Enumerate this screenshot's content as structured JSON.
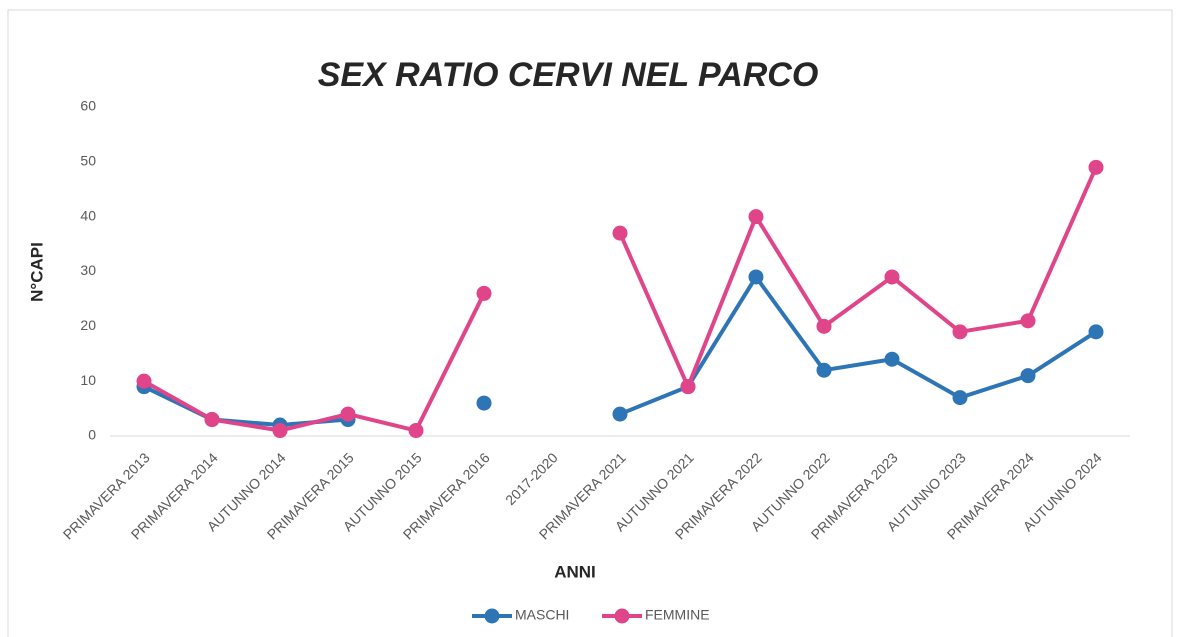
{
  "chart_data": {
    "type": "line",
    "title": "SEX RATIO CERVI NEL PARCO",
    "x_label": "ANNI",
    "y_label": "N°CAPI",
    "categories": [
      "PRIMAVERA 2013",
      "PRIMAVERA 2014",
      "AUTUNNO 2014",
      "PRIMAVERA 2015",
      "AUTUNNO 2015",
      "PRIMAVERA 2016",
      "2017-2020",
      "PRIMAVERA 2021",
      "AUTUNNO 2021",
      "PRIMAVERA 2022",
      "AUTUNNO 2022",
      "PRIMAVERA 2023",
      "AUTUNNO 2023",
      "PRIMAVERA 2024",
      "AUTUNNO 2024"
    ],
    "series": [
      {
        "name": "MASCHI",
        "color": "#2e75b6",
        "values": [
          9,
          3,
          2,
          3,
          null,
          6,
          null,
          4,
          9,
          29,
          12,
          14,
          7,
          11,
          19
        ]
      },
      {
        "name": "FEMMINE",
        "color": "#e0458a",
        "values": [
          10,
          3,
          1,
          4,
          1,
          26,
          null,
          37,
          9,
          40,
          20,
          29,
          19,
          21,
          49
        ]
      }
    ],
    "ylim": [
      0,
      60
    ],
    "yticks": [
      0,
      10,
      20,
      30,
      40,
      50,
      60
    ],
    "grid": false,
    "legend": "bottom"
  }
}
